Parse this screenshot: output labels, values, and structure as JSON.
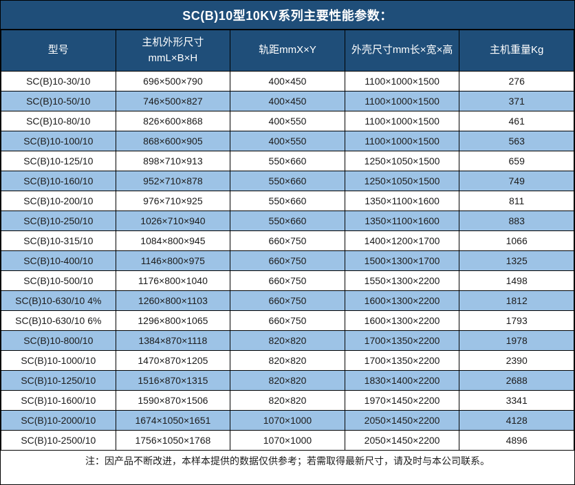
{
  "title": "SC(B)10型10KV系列主要性能参数：",
  "note": "注：因产品不断改进，本样本提供的数据仅供参考；若需取得最新尺寸，请及时与本公司联系。",
  "colors": {
    "header_bg": "#1F4E79",
    "header_text": "#FFFFFF",
    "row_alt_bg": "#9DC3E6",
    "row_bg": "#FFFFFF",
    "border": "#000000",
    "body_text": "#1A1A1A"
  },
  "table": {
    "columns": [
      {
        "key": "model",
        "lines": [
          "型号"
        ]
      },
      {
        "key": "main-dimensions",
        "lines": [
          "主机外形尺寸",
          "mmL×B×H"
        ]
      },
      {
        "key": "track-gauge",
        "lines": [
          "轨距mmX×Y"
        ]
      },
      {
        "key": "shell-dimensions",
        "lines": [
          "外壳尺寸mm长×宽×高"
        ]
      },
      {
        "key": "weight",
        "lines": [
          "主机重量Kg"
        ]
      }
    ],
    "rows": [
      [
        "SC(B)10-30/10",
        "696×500×790",
        "400×450",
        "1100×1000×1500",
        "276"
      ],
      [
        "SC(B)10-50/10",
        "746×500×827",
        "400×450",
        "1100×1000×1500",
        "371"
      ],
      [
        "SC(B)10-80/10",
        "826×600×868",
        "400×550",
        "1100×1000×1500",
        "461"
      ],
      [
        "SC(B)10-100/10",
        "868×600×905",
        "400×550",
        "1100×1000×1500",
        "563"
      ],
      [
        "SC(B)10-125/10",
        "898×710×913",
        "550×660",
        "1250×1050×1500",
        "659"
      ],
      [
        "SC(B)10-160/10",
        "952×710×878",
        "550×660",
        "1250×1050×1500",
        "749"
      ],
      [
        "SC(B)10-200/10",
        "976×710×925",
        "550×660",
        "1350×1100×1600",
        "811"
      ],
      [
        "SC(B)10-250/10",
        "1026×710×940",
        "550×660",
        "1350×1100×1600",
        "883"
      ],
      [
        "SC(B)10-315/10",
        "1084×800×945",
        "660×750",
        "1400×1200×1700",
        "1066"
      ],
      [
        "SC(B)10-400/10",
        "1146×800×975",
        "660×750",
        "1500×1300×1700",
        "1325"
      ],
      [
        "SC(B)10-500/10",
        "1176×800×1040",
        "660×750",
        "1550×1300×2200",
        "1498"
      ],
      [
        "SC(B)10-630/10 4%",
        "1260×800×1103",
        "660×750",
        "1600×1300×2200",
        "1812"
      ],
      [
        "SC(B)10-630/10 6%",
        "1296×800×1065",
        "660×750",
        "1600×1300×2200",
        "1793"
      ],
      [
        "SC(B)10-800/10",
        "1384×870×1118",
        "820×820",
        "1700×1350×2200",
        "1978"
      ],
      [
        "SC(B)10-1000/10",
        "1470×870×1205",
        "820×820",
        "1700×1350×2200",
        "2390"
      ],
      [
        "SC(B)10-1250/10",
        "1516×870×1315",
        "820×820",
        "1830×1400×2200",
        "2688"
      ],
      [
        "SC(B)10-1600/10",
        "1590×870×1506",
        "820×820",
        "1970×1450×2200",
        "3341"
      ],
      [
        "SC(B)10-2000/10",
        "1674×1050×1651",
        "1070×1000",
        "2050×1450×2200",
        "4128"
      ],
      [
        "SC(B)10-2500/10",
        "1756×1050×1768",
        "1070×1000",
        "2050×1450×2200",
        "4896"
      ]
    ]
  }
}
